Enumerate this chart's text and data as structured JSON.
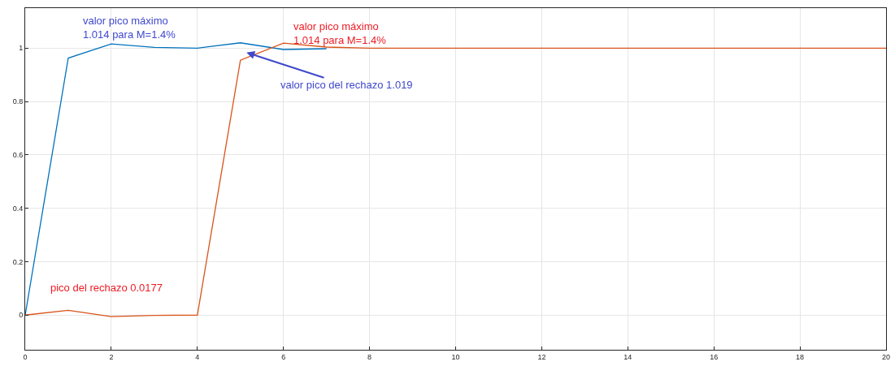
{
  "chart_data": {
    "type": "line",
    "x": [
      0,
      1,
      2,
      3,
      4,
      5,
      6,
      7,
      8,
      9,
      10,
      11,
      12,
      13,
      14,
      15,
      16,
      17,
      18,
      19,
      20
    ],
    "series": [
      {
        "color": "#0072bd",
        "values": [
          0,
          0.963,
          1.016,
          1.003,
          1.0,
          1.02,
          0.995,
          0.998,
          null,
          null,
          null,
          null,
          null,
          null,
          null,
          null,
          null,
          null,
          null,
          null,
          null
        ]
      },
      {
        "color": "#d95319",
        "values": [
          0,
          0.018,
          -0.006,
          -0.001,
          0,
          0.955,
          1.019,
          1.004,
          1,
          1,
          1,
          1,
          1,
          1,
          1,
          1,
          1,
          1,
          1,
          1,
          1
        ]
      }
    ],
    "xlim": [
      0,
      20
    ],
    "xticks": [
      0,
      2,
      4,
      6,
      8,
      10,
      12,
      14,
      16,
      18,
      20
    ],
    "ylim": [
      -0.13,
      1.15
    ],
    "yticks": [
      0,
      0.2,
      0.4,
      0.6,
      0.8,
      1
    ],
    "grid": true,
    "marker": "none",
    "line_style": "solid",
    "annotations": [
      "valor pico máximo\n1.014 para M=1.4%",
      "valor pico máximo\n1.014 para M=1.4%",
      "valor pico del rechazo 1.019",
      "pico del rechazo 0.0177"
    ]
  }
}
